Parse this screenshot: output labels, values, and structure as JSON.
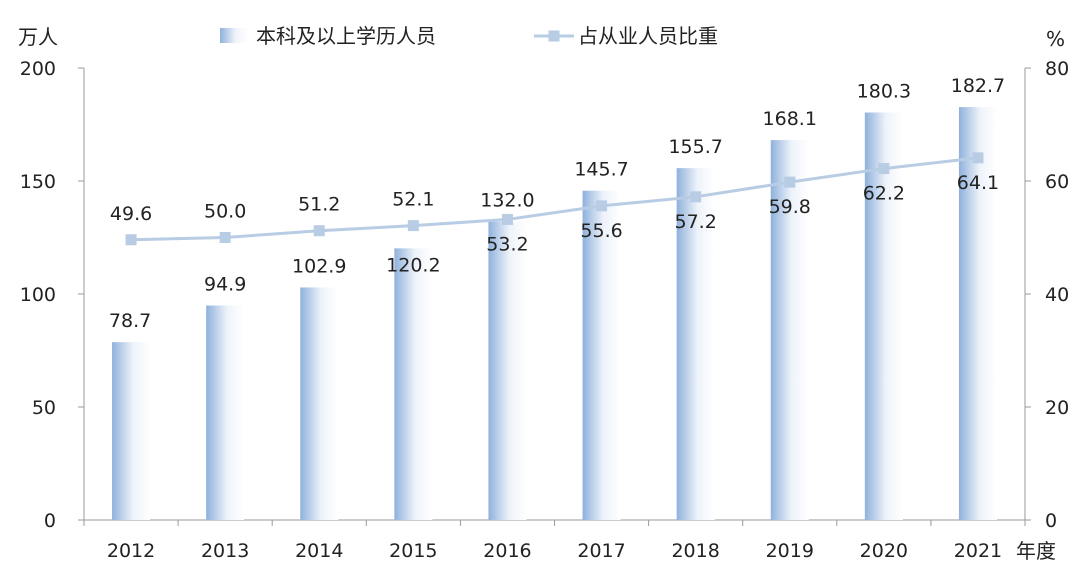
{
  "chart_data": {
    "type": "bar+line",
    "categories": [
      "2012",
      "2013",
      "2014",
      "2015",
      "2016",
      "2017",
      "2018",
      "2019",
      "2020",
      "2021"
    ],
    "x_unit": "年度",
    "y_left": {
      "unit": "万人",
      "range": [
        0,
        200
      ],
      "ticks": [
        0,
        50,
        100,
        150,
        200
      ]
    },
    "y_right": {
      "unit": "%",
      "range": [
        0,
        80
      ],
      "ticks": [
        0,
        20,
        40,
        60,
        80
      ]
    },
    "series": [
      {
        "name": "本科及以上学历人员",
        "type": "bar",
        "axis": "left",
        "values": [
          78.7,
          94.9,
          102.9,
          120.2,
          132.0,
          145.7,
          155.7,
          168.1,
          180.3,
          182.7
        ],
        "labels": [
          "78.7",
          "94.9",
          "102.9",
          "120.2",
          "132.0",
          "145.7",
          "155.7",
          "168.1",
          "180.3",
          "182.7"
        ],
        "color": "#8fb1dc"
      },
      {
        "name": "占从业人员比重",
        "type": "line",
        "axis": "right",
        "values": [
          49.6,
          50.0,
          51.2,
          52.1,
          53.2,
          55.6,
          57.2,
          59.8,
          62.2,
          64.1
        ],
        "labels": [
          "49.6",
          "50.0",
          "51.2",
          "52.1",
          "53.2",
          "55.6",
          "57.2",
          "59.8",
          "62.2",
          "64.1"
        ],
        "color": "#b8cce4"
      }
    ],
    "legend_position": "top-center",
    "grid": false
  }
}
